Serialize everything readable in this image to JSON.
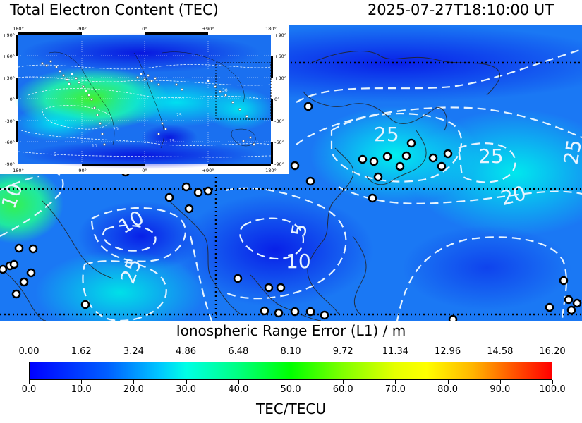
{
  "header": {
    "title": "Total Electron Content (TEC)",
    "timestamp": "2025-07-27T18:10:00 UT"
  },
  "inset": {
    "lon_labels": [
      "180°",
      "-90°",
      "0°",
      "+90°",
      "180°"
    ],
    "lat_labels": [
      "+90°",
      "+60°",
      "+30°",
      "0°",
      "-30°",
      "-60°",
      "-90°"
    ],
    "contour_labels": [
      "5",
      "10",
      "20",
      "25",
      "30",
      "15"
    ]
  },
  "main_map": {
    "contour_labels": [
      "25",
      "25",
      "25",
      "20",
      "10",
      "5",
      "10",
      "25",
      "10",
      "20"
    ],
    "colors": {
      "low": "#0b1ff0",
      "mid": "#1a9cff",
      "high": "#00e0e0",
      "green": "#2ee85a"
    }
  },
  "colorbar": {
    "top_title": "Ionospheric Range Error (L1) / m",
    "top_ticks": [
      "0.00",
      "1.62",
      "3.24",
      "4.86",
      "6.48",
      "8.10",
      "9.72",
      "11.34",
      "12.96",
      "14.58",
      "16.20"
    ],
    "bottom_title": "TEC/TECU",
    "bottom_ticks": [
      "0.0",
      "10.0",
      "20.0",
      "30.0",
      "40.0",
      "50.0",
      "60.0",
      "70.0",
      "80.0",
      "90.0",
      "100.0"
    ]
  }
}
